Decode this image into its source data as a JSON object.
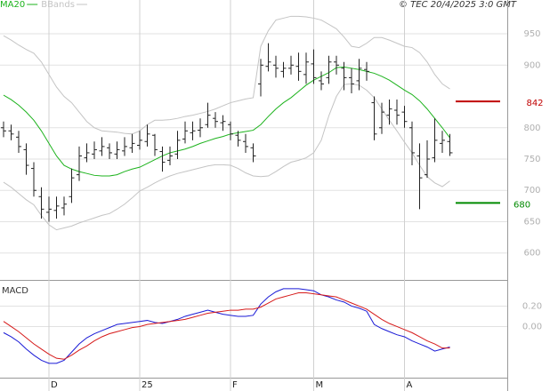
{
  "chart_data": [
    {
      "type": "ohlc",
      "annotation": "© TEC 20/4/2025 3:0 GMT",
      "categories": [
        null,
        null,
        null,
        null,
        null,
        null,
        "D",
        null,
        null,
        null,
        null,
        null,
        null,
        null,
        null,
        null,
        null,
        null,
        "25",
        null,
        null,
        null,
        null,
        null,
        null,
        null,
        null,
        null,
        null,
        null,
        "F",
        null,
        null,
        null,
        null,
        null,
        null,
        null,
        null,
        null,
        null,
        "M",
        null,
        null,
        null,
        null,
        null,
        null,
        null,
        null,
        null,
        null,
        null,
        "A",
        null,
        null,
        null,
        null,
        null,
        null
      ],
      "open": [
        800,
        795,
        785,
        765,
        735,
        690,
        665,
        668,
        672,
        690,
        725,
        752,
        758,
        763,
        768,
        758,
        763,
        768,
        772,
        778,
        788,
        762,
        748,
        758,
        782,
        792,
        796,
        805,
        815,
        808,
        805,
        788,
        778,
        768,
        870,
        898,
        900,
        890,
        895,
        898,
        885,
        902,
        875,
        880,
        905,
        895,
        880,
        875,
        893,
        840,
        800,
        820,
        828,
        825,
        800,
        755,
        725,
        752,
        775,
        778
      ],
      "high": [
        810,
        805,
        795,
        775,
        745,
        705,
        690,
        690,
        690,
        735,
        770,
        775,
        778,
        785,
        775,
        778,
        785,
        790,
        795,
        805,
        790,
        770,
        770,
        795,
        810,
        810,
        815,
        840,
        825,
        820,
        810,
        795,
        790,
        775,
        910,
        935,
        915,
        905,
        915,
        920,
        920,
        925,
        890,
        915,
        915,
        905,
        895,
        910,
        905,
        850,
        840,
        845,
        845,
        835,
        810,
        775,
        780,
        815,
        795,
        790
      ],
      "low": [
        785,
        780,
        760,
        725,
        690,
        655,
        650,
        655,
        660,
        680,
        715,
        745,
        750,
        755,
        750,
        750,
        755,
        760,
        765,
        770,
        755,
        730,
        740,
        750,
        775,
        780,
        785,
        800,
        800,
        795,
        780,
        770,
        760,
        745,
        850,
        890,
        880,
        880,
        885,
        875,
        870,
        870,
        860,
        870,
        885,
        860,
        855,
        860,
        875,
        780,
        790,
        805,
        805,
        800,
        740,
        670,
        720,
        745,
        760,
        755
      ],
      "close": [
        795,
        790,
        770,
        740,
        700,
        670,
        670,
        675,
        678,
        720,
        755,
        760,
        765,
        770,
        760,
        765,
        770,
        775,
        780,
        790,
        765,
        745,
        755,
        780,
        795,
        795,
        800,
        820,
        810,
        810,
        790,
        780,
        770,
        755,
        900,
        905,
        895,
        895,
        900,
        890,
        905,
        880,
        870,
        905,
        900,
        880,
        870,
        895,
        890,
        790,
        825,
        830,
        820,
        810,
        760,
        720,
        750,
        780,
        780,
        760
      ],
      "bar_color": "#222222",
      "series": [
        {
          "name": "MA20",
          "color": "#1db31d",
          "values": [
            852,
            845,
            836,
            825,
            812,
            795,
            775,
            755,
            740,
            734,
            730,
            727,
            724,
            723,
            723,
            725,
            730,
            734,
            737,
            743,
            749,
            755,
            760,
            763,
            766,
            770,
            775,
            779,
            783,
            786,
            790,
            792,
            794,
            796,
            805,
            818,
            830,
            840,
            848,
            858,
            868,
            876,
            882,
            888,
            896,
            897,
            895,
            893,
            890,
            887,
            882,
            876,
            868,
            860,
            853,
            843,
            830,
            815,
            800,
            784
          ]
        },
        {
          "name": "BBands",
          "color": "#c4c4c4",
          "upper": [
            947,
            940,
            932,
            925,
            919,
            905,
            885,
            865,
            850,
            840,
            825,
            810,
            800,
            795,
            794,
            793,
            791,
            790,
            795,
            805,
            812,
            812,
            813,
            815,
            818,
            820,
            823,
            826,
            830,
            835,
            840,
            843,
            846,
            848,
            930,
            955,
            972,
            975,
            978,
            978,
            977,
            975,
            972,
            965,
            958,
            945,
            930,
            928,
            935,
            944,
            944,
            940,
            935,
            930,
            928,
            920,
            905,
            885,
            870,
            862
          ],
          "lower": [
            713,
            705,
            695,
            685,
            677,
            660,
            645,
            637,
            640,
            643,
            648,
            652,
            656,
            660,
            663,
            670,
            678,
            688,
            699,
            705,
            712,
            718,
            723,
            727,
            730,
            733,
            736,
            739,
            741,
            741,
            740,
            735,
            728,
            723,
            722,
            723,
            730,
            738,
            745,
            748,
            752,
            760,
            780,
            819,
            850,
            869,
            870,
            868,
            860,
            848,
            830,
            812,
            795,
            777,
            760,
            740,
            722,
            712,
            706,
            715
          ]
        }
      ],
      "levels": [
        {
          "value": 842,
          "color": "#c00000"
        },
        {
          "value": 680,
          "color": "#008a00"
        }
      ],
      "ylim": [
        557,
        1004
      ],
      "yticks": [
        600,
        650,
        700,
        750,
        800,
        900,
        950
      ],
      "grid": true
    },
    {
      "type": "line",
      "title": "MACD",
      "series": [
        {
          "color": "#1a1ad6",
          "values": [
            -0.06,
            -0.1,
            -0.15,
            -0.22,
            -0.28,
            -0.33,
            -0.36,
            -0.36,
            -0.33,
            -0.25,
            -0.17,
            -0.11,
            -0.07,
            -0.04,
            -0.01,
            0.02,
            0.03,
            0.04,
            0.05,
            0.06,
            0.04,
            0.03,
            0.05,
            0.07,
            0.1,
            0.12,
            0.14,
            0.16,
            0.14,
            0.12,
            0.11,
            0.1,
            0.1,
            0.11,
            0.22,
            0.29,
            0.34,
            0.37,
            0.37,
            0.37,
            0.36,
            0.35,
            0.31,
            0.29,
            0.26,
            0.24,
            0.2,
            0.18,
            0.15,
            0.02,
            -0.02,
            -0.05,
            -0.08,
            -0.1,
            -0.14,
            -0.17,
            -0.2,
            -0.24,
            -0.22,
            -0.2
          ]
        },
        {
          "color": "#d61a1a",
          "values": [
            0.05,
            0.0,
            -0.05,
            -0.11,
            -0.17,
            -0.22,
            -0.27,
            -0.31,
            -0.32,
            -0.28,
            -0.23,
            -0.19,
            -0.14,
            -0.1,
            -0.07,
            -0.05,
            -0.03,
            -0.01,
            0.0,
            0.02,
            0.03,
            0.04,
            0.05,
            0.06,
            0.07,
            0.09,
            0.11,
            0.13,
            0.14,
            0.15,
            0.16,
            0.16,
            0.17,
            0.17,
            0.19,
            0.23,
            0.27,
            0.29,
            0.31,
            0.33,
            0.33,
            0.32,
            0.31,
            0.3,
            0.29,
            0.26,
            0.23,
            0.2,
            0.17,
            0.12,
            0.07,
            0.03,
            0.0,
            -0.03,
            -0.06,
            -0.1,
            -0.14,
            -0.17,
            -0.21,
            -0.21
          ]
        }
      ],
      "ylim": [
        -0.5,
        0.43
      ],
      "yticks": [
        {
          "value": 0.2,
          "label": "0.20"
        },
        {
          "value": 0,
          "label": "0.00"
        }
      ],
      "grid": true
    }
  ]
}
